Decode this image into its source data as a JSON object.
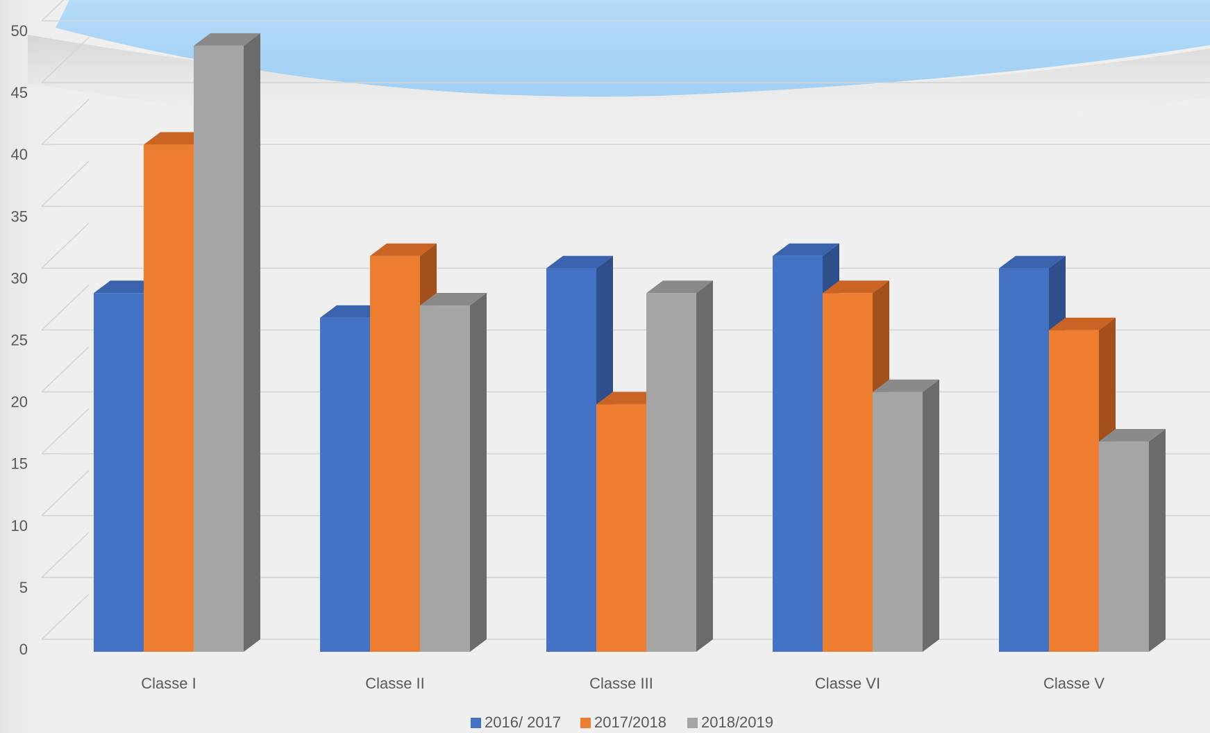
{
  "chart_data": {
    "type": "bar",
    "title": "",
    "xlabel": "",
    "ylabel": "",
    "categories": [
      "Classe I",
      "Classe II",
      "Classe III",
      "Classe VI",
      "Classe V"
    ],
    "series": [
      {
        "name": "2016/ 2017",
        "values": [
          29,
          27,
          31,
          32,
          31
        ],
        "color": "#4472c4",
        "side": "#2e4f8c",
        "top": "#3b63ad"
      },
      {
        "name": "2017/2018",
        "values": [
          41,
          32,
          20,
          29,
          26
        ],
        "color": "#ed7d31",
        "side": "#a3501c",
        "top": "#c96425"
      },
      {
        "name": "2018/2019",
        "values": [
          49,
          28,
          29,
          21,
          17
        ],
        "color": "#a5a5a5",
        "side": "#6b6b6b",
        "top": "#8a8a8a"
      }
    ],
    "yticks": [
      0,
      5,
      10,
      15,
      20,
      25,
      30,
      35,
      40,
      45,
      50
    ],
    "ylim": [
      0,
      50
    ],
    "grid": true,
    "legend": "bottom",
    "style": "3d-clustered-column"
  },
  "colors": {
    "background": "#efefef",
    "decorative_wave": "#a9d3f5"
  }
}
